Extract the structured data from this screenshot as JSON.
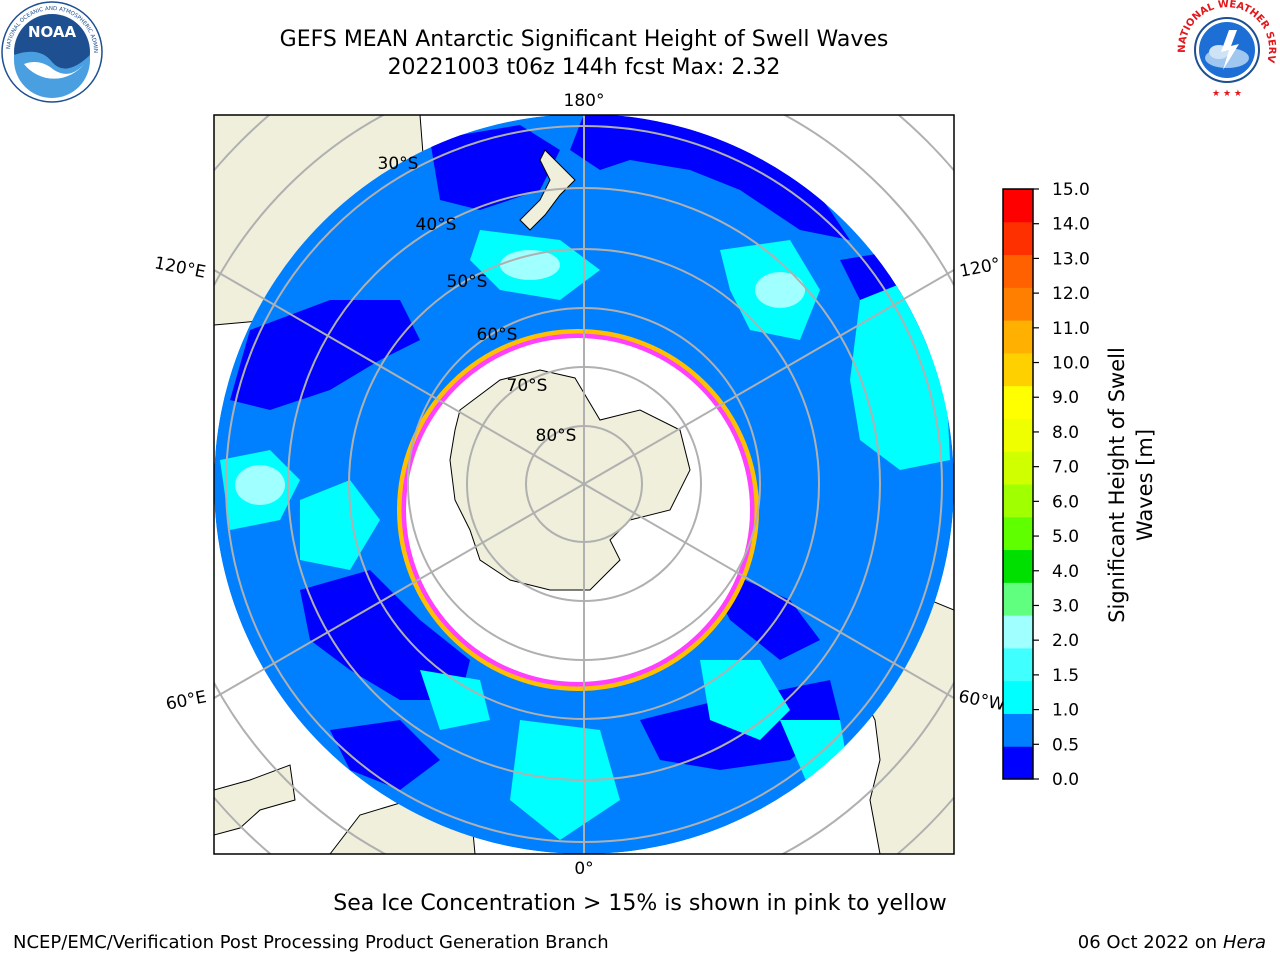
{
  "title": {
    "line1": "GEFS MEAN Antarctic Significant Height of Swell Waves",
    "line2": "20221003 t06z 144h fcst   Max: 2.32"
  },
  "logos": {
    "left": "NOAA",
    "left_ring_text": "NATIONAL OCEANIC AND ATMOSPHERIC ADMINISTRATION · U.S. DEPARTMENT OF COMMERCE",
    "right_ring_text": "NATIONAL WEATHER SERVICE"
  },
  "map": {
    "longitude_labels": [
      "180°",
      "120°E",
      "120°",
      "60°E",
      "60°W",
      "0°"
    ],
    "latitude_labels": [
      "30°S",
      "40°S",
      "50°S",
      "60°S",
      "70°S",
      "80°S"
    ]
  },
  "colorbar": {
    "label_line1": "Significant Height of Swell",
    "label_line2": "Waves [m]",
    "ticks": [
      "15.0",
      "14.0",
      "13.0",
      "12.0",
      "11.0",
      "10.0",
      "9.0",
      "8.0",
      "7.0",
      "6.0",
      "5.0",
      "4.0",
      "3.0",
      "2.0",
      "1.5",
      "1.0",
      "0.5",
      "0.0"
    ],
    "colors": [
      "#0000ff",
      "#0080ff",
      "#00ffff",
      "#40ffff",
      "#a0ffff",
      "#60ff80",
      "#00e000",
      "#60ff00",
      "#a0ff00",
      "#d0ff00",
      "#f0ff00",
      "#ffff00",
      "#ffd000",
      "#ffb000",
      "#ff8000",
      "#ff6000",
      "#ff3000",
      "#ff0000"
    ],
    "land_color": "#efefdb",
    "ice_colors": [
      "#ff40ff",
      "#ffc000"
    ]
  },
  "caption": "Sea Ice Concentration > 15% is shown in pink to yellow",
  "footer": {
    "left": "NCEP/EMC/Verification Post Processing Product Generation Branch",
    "right_date": "06 Oct 2022 on ",
    "right_host": "Hera"
  }
}
